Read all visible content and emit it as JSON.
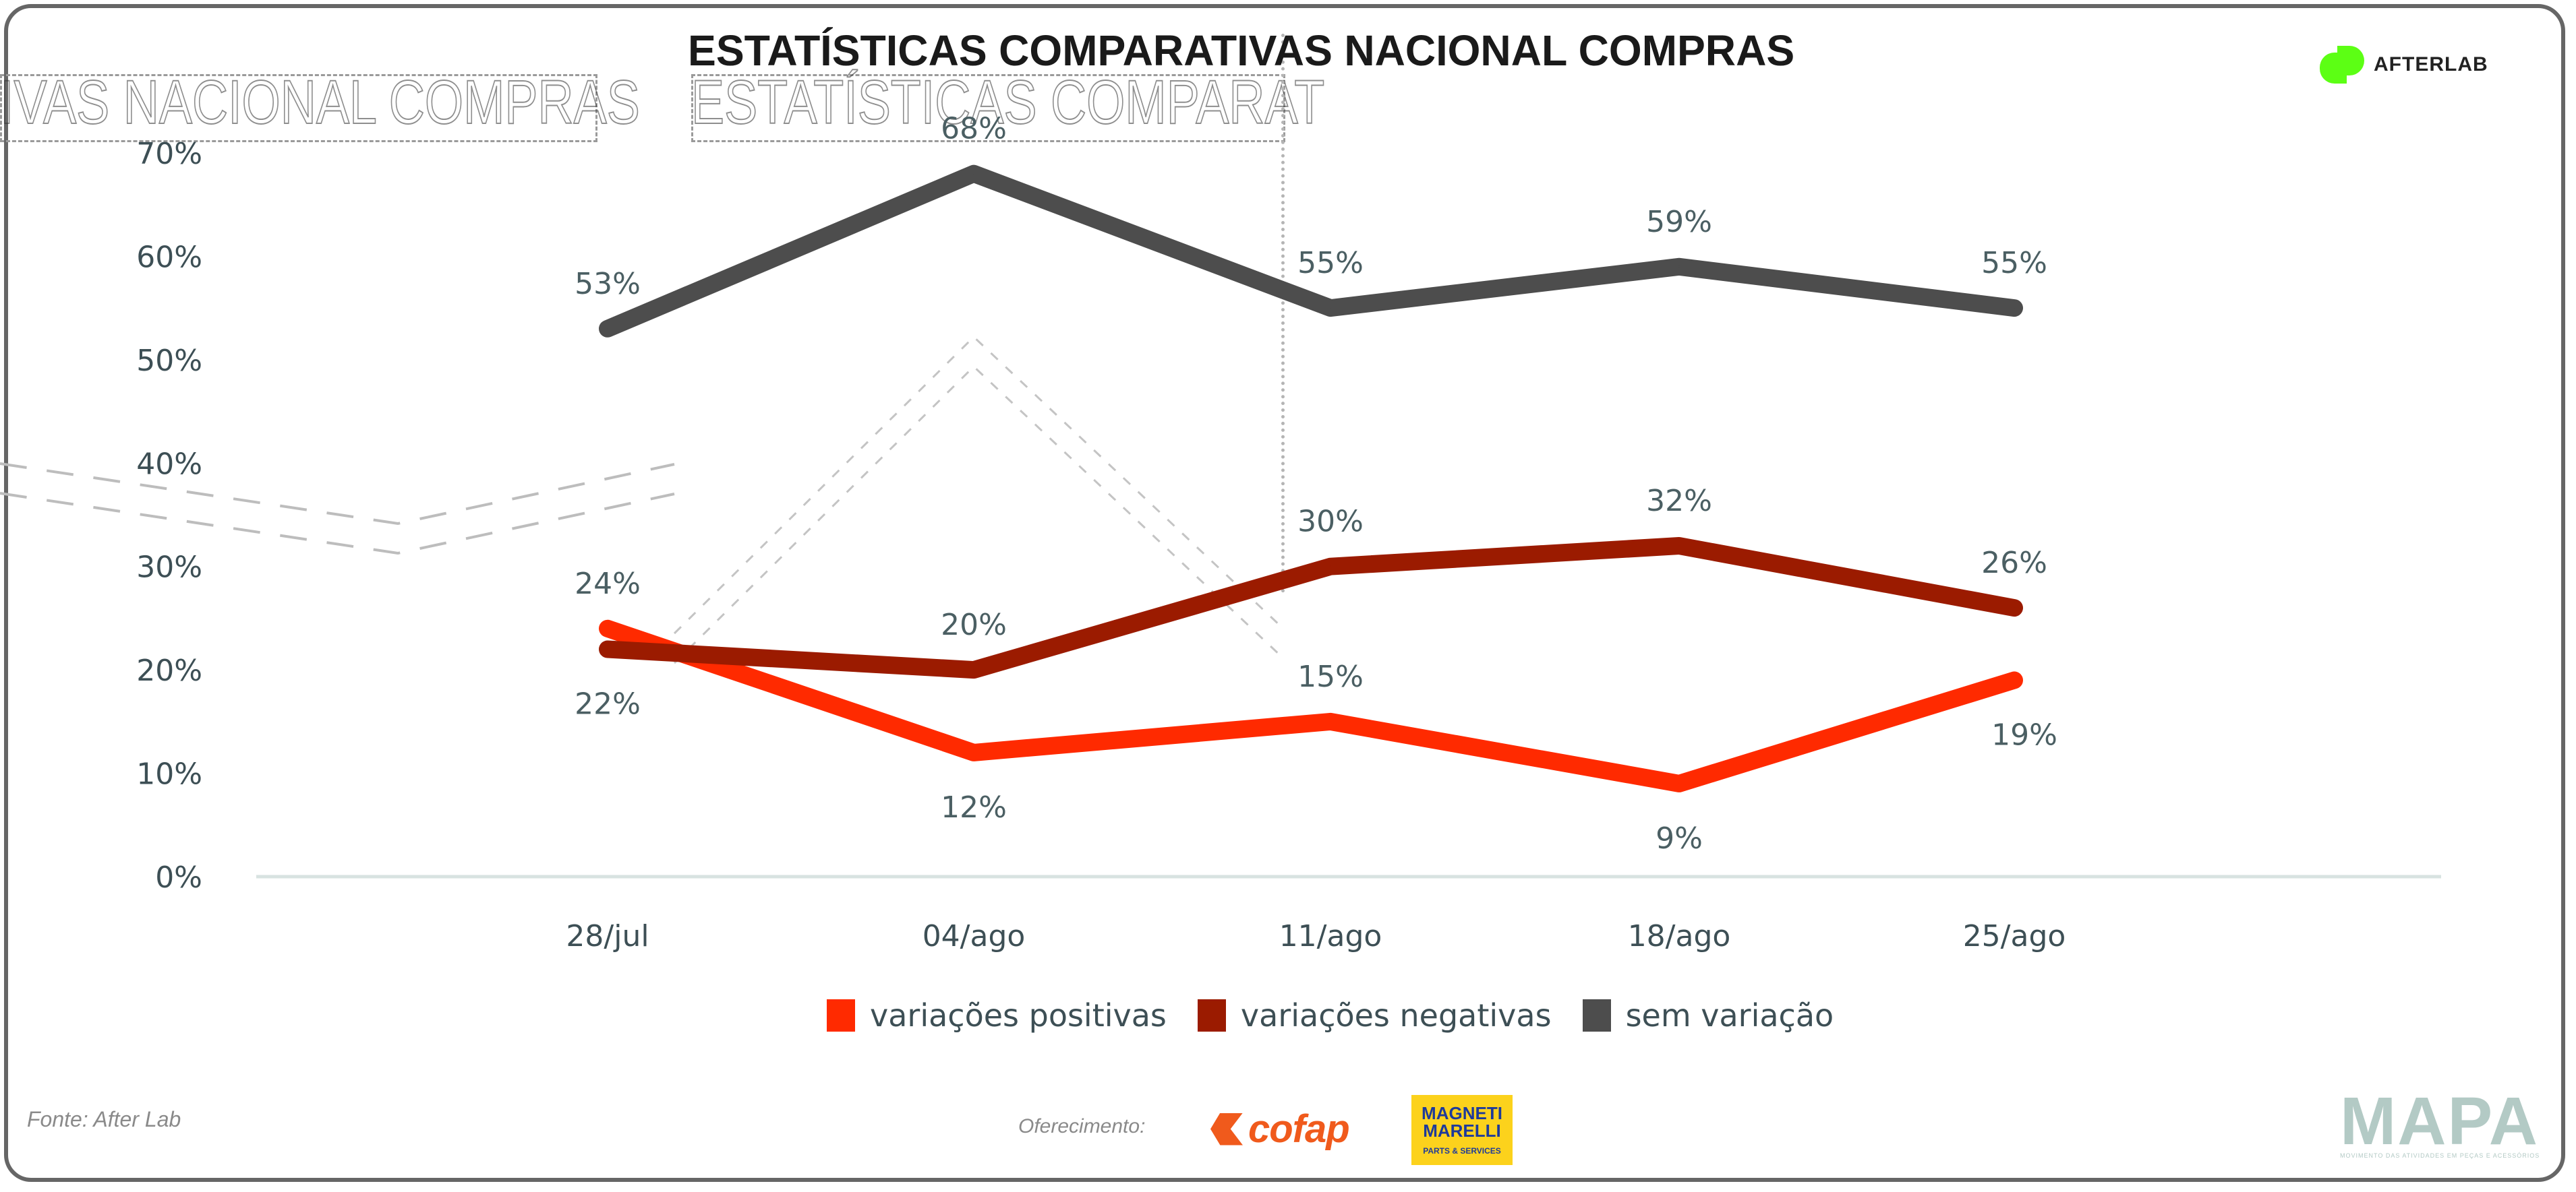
{
  "header": {
    "title": "ESTATÍSTICAS COMPARATIVAS NACIONAL COMPRAS",
    "ghost_left": "IVAS NACIONAL COMPRAS",
    "ghost_mid": "ESTATÍSTICAS COMPARAT",
    "ghost_logo": "AFTERLAB",
    "logo_text": "AFTERLAB"
  },
  "colors": {
    "positive": "#ff2a00",
    "negative": "#9b1b00",
    "neutral": "#4d4d4d",
    "baseline": "#d8e3e1",
    "logo_green": "#5cff14"
  },
  "chart_data": {
    "type": "line",
    "title": "ESTATÍSTICAS COMPARATIVAS NACIONAL COMPRAS",
    "xlabel": "",
    "ylabel": "",
    "categories": [
      "28/jul",
      "04/ago",
      "11/ago",
      "18/ago",
      "25/ago"
    ],
    "ylim": [
      0,
      70
    ],
    "yticks": [
      "0%",
      "10%",
      "20%",
      "30%",
      "40%",
      "50%",
      "60%",
      "70%"
    ],
    "grid": false,
    "legend_position": "bottom",
    "series": [
      {
        "name": "variações positivas",
        "color": "#ff2a00",
        "values": [
          24,
          12,
          15,
          9,
          19
        ],
        "labels": [
          "24%",
          "12%",
          "15%",
          "9%",
          "19%"
        ]
      },
      {
        "name": "variações negativas",
        "color": "#9b1b00",
        "values": [
          22,
          20,
          30,
          32,
          26
        ],
        "labels": [
          "22%",
          "20%",
          "30%",
          "32%",
          "26%"
        ]
      },
      {
        "name": "sem variação",
        "color": "#4d4d4d",
        "values": [
          53,
          68,
          55,
          59,
          55
        ],
        "labels": [
          "53%",
          "68%",
          "55%",
          "59%",
          "55%"
        ]
      }
    ]
  },
  "legend": {
    "items": [
      {
        "label": "variações positivas",
        "color": "#ff2a00"
      },
      {
        "label": "variações negativas",
        "color": "#9b1b00"
      },
      {
        "label": "sem variação",
        "color": "#4d4d4d"
      }
    ]
  },
  "footer": {
    "source": "Fonte: After Lab",
    "offer_label": "Oferecimento:",
    "sponsor1": "cofap",
    "sponsor2_line1": "MAGNETI",
    "sponsor2_line2": "MARELLI",
    "sponsor2_sub": "PARTS & SERVICES",
    "brand": "MAPA",
    "brand_sub": "MOVIMENTO DAS ATIVIDADES EM PEÇAS E ACESSÓRIOS"
  }
}
